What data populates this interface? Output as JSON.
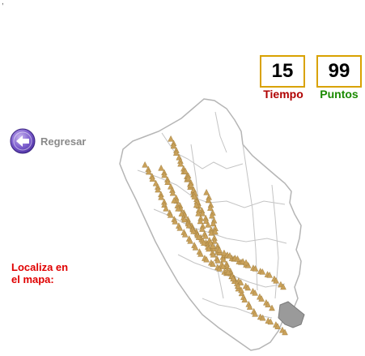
{
  "header": {
    "corner_mark": ","
  },
  "score": {
    "time_value": "15",
    "time_label": "Tiempo",
    "points_value": "99",
    "points_label": "Puntos",
    "time_color": "#b00000",
    "points_color": "#1a8a00",
    "box_border_color": "#d9a200"
  },
  "nav": {
    "back_label": "Regresar",
    "back_icon": "left-arrow-icon"
  },
  "prompt": {
    "line1": "Localiza en",
    "line2": "el mapa:"
  },
  "map": {
    "region": "Perú",
    "mountain_color": "#c9a15a",
    "target_region_color": "#9a9a9a",
    "outline_color": "#b5b5b5"
  }
}
